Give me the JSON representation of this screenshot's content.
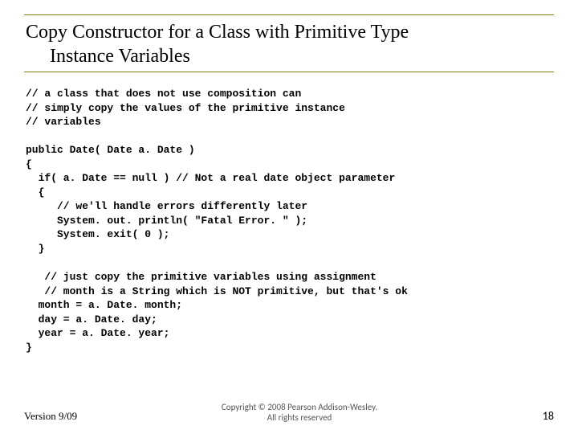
{
  "title": {
    "line1": "Copy Constructor for a Class with Primitive Type",
    "line2": "Instance Variables"
  },
  "code": {
    "c1": "// a class that does not use composition can",
    "c2": "// simply copy the values of the primitive instance",
    "c3": "// variables",
    "blank1": "",
    "l1": "public Date( Date a. Date )",
    "l2": "{",
    "l3": "  if( a. Date == null ) // Not a real date object parameter",
    "l4": "  {",
    "l5": "     // we'll handle errors differently later",
    "l6": "     System. out. println( \"Fatal Error. \" );",
    "l7": "     System. exit( 0 );",
    "l8": "  }",
    "blank2": "",
    "l9": "   // just copy the primitive variables using assignment",
    "l10": "   // month is a String which is NOT primitive, but that's ok",
    "l11": "  month = a. Date. month;",
    "l12": "  day = a. Date. day;",
    "l13": "  year = a. Date. year;",
    "l14": "}"
  },
  "footer": {
    "version": "Version 9/09",
    "copyright_line1": "Copyright © 2008 Pearson Addison-Wesley.",
    "copyright_line2": "All rights reserved",
    "page": "18"
  },
  "colors": {
    "rule": "#808000",
    "text": "#000000",
    "footer_gray": "#555555",
    "background": "#ffffff"
  },
  "typography": {
    "title_fontsize": 24,
    "code_fontsize": 13,
    "code_fontfamily": "Courier New",
    "footer_fontsize": 13,
    "page_fontsize": 14
  }
}
